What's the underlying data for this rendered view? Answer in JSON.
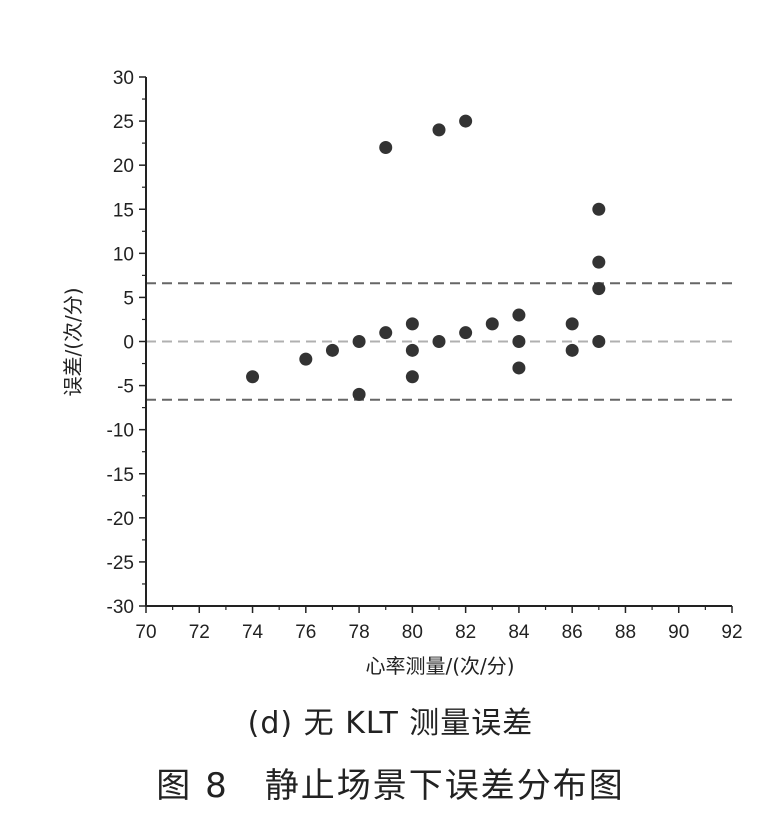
{
  "chart_data": {
    "type": "scatter",
    "xlabel": "心率测量/(次/分)",
    "ylabel": "误差/(次/分)",
    "xlim": [
      70,
      92
    ],
    "ylim": [
      -30,
      30
    ],
    "xticks": [
      "70",
      "72",
      "74",
      "76",
      "78",
      "80",
      "82",
      "84",
      "86",
      "88",
      "90",
      "92"
    ],
    "yticks": [
      "30",
      "25",
      "20",
      "15",
      "10",
      "5",
      "0",
      "-5",
      "-10",
      "-15",
      "-20",
      "-25",
      "-30"
    ],
    "x_tick_values": [
      70,
      72,
      74,
      76,
      78,
      80,
      82,
      84,
      86,
      88,
      90,
      92
    ],
    "y_tick_values": [
      30,
      25,
      20,
      15,
      10,
      5,
      0,
      -5,
      -10,
      -15,
      -20,
      -25,
      -30
    ],
    "points": [
      {
        "x": 74,
        "y": -4
      },
      {
        "x": 76,
        "y": -2
      },
      {
        "x": 77,
        "y": -1
      },
      {
        "x": 78,
        "y": 0
      },
      {
        "x": 78,
        "y": -6
      },
      {
        "x": 79,
        "y": 22
      },
      {
        "x": 79,
        "y": 1
      },
      {
        "x": 80,
        "y": 2
      },
      {
        "x": 80,
        "y": -1
      },
      {
        "x": 80,
        "y": -4
      },
      {
        "x": 81,
        "y": 24
      },
      {
        "x": 81,
        "y": 0
      },
      {
        "x": 82,
        "y": 25
      },
      {
        "x": 82,
        "y": 1
      },
      {
        "x": 83,
        "y": 2
      },
      {
        "x": 84,
        "y": 3
      },
      {
        "x": 84,
        "y": 0
      },
      {
        "x": 84,
        "y": -3
      },
      {
        "x": 86,
        "y": 2
      },
      {
        "x": 86,
        "y": -1
      },
      {
        "x": 87,
        "y": 15
      },
      {
        "x": 87,
        "y": 9
      },
      {
        "x": 87,
        "y": 6
      },
      {
        "x": 87,
        "y": 0
      }
    ],
    "reference_lines": [
      {
        "y": 6.6,
        "style": "dashed",
        "color": "#666666"
      },
      {
        "y": 0,
        "style": "dashed",
        "color": "#b0b0b0"
      },
      {
        "y": -6.6,
        "style": "dashed",
        "color": "#666666"
      }
    ],
    "marker_color": "#333333",
    "grid": false
  },
  "captions": {
    "subcaption": "(d) 无 KLT 测量误差",
    "figure": "图 8　静止场景下误差分布图"
  }
}
